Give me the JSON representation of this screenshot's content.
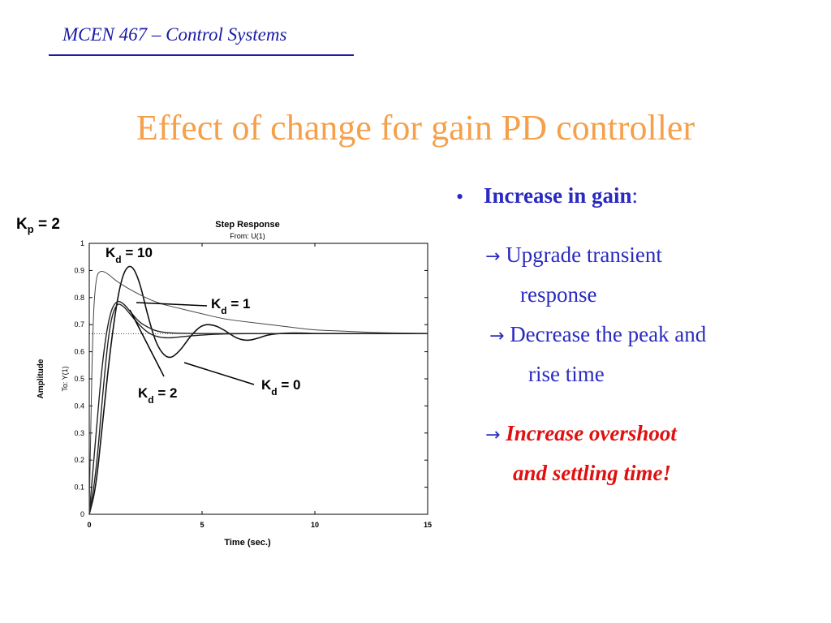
{
  "header": {
    "course": "MCEN 467 – Control Systems"
  },
  "slide": {
    "title": "Effect of change for gain PD controller"
  },
  "figure": {
    "kp_label": "K",
    "kp_sub": "p",
    "kp_value": " = 2"
  },
  "chart_data": {
    "type": "line",
    "title": "Step Response",
    "subtitle": "From: U(1)",
    "xlabel": "Time (sec.)",
    "ylabel": "Amplitude",
    "ylabel2": "To: Y(1)",
    "xlim": [
      0,
      15
    ],
    "ylim": [
      0,
      1
    ],
    "xticks": [
      0,
      5,
      10,
      15
    ],
    "yticks": [
      0,
      0.1,
      0.2,
      0.3,
      0.4,
      0.5,
      0.6,
      0.7,
      0.8,
      0.9,
      1
    ],
    "final_value": 0.667,
    "series": [
      {
        "name": "Kd = 0",
        "x": [
          0,
          0.3,
          0.6,
          1,
          1.4,
          1.8,
          2.2,
          2.6,
          3,
          3.5,
          4,
          4.5,
          5,
          5.5,
          6,
          6.5,
          7,
          7.5,
          8,
          9,
          10,
          12,
          15
        ],
        "y": [
          0,
          0.1,
          0.35,
          0.66,
          0.87,
          0.93,
          0.87,
          0.73,
          0.62,
          0.57,
          0.6,
          0.66,
          0.7,
          0.7,
          0.68,
          0.65,
          0.64,
          0.65,
          0.665,
          0.67,
          0.667,
          0.667,
          0.667
        ]
      },
      {
        "name": "Kd = 1",
        "x": [
          0,
          0.3,
          0.6,
          0.9,
          1.2,
          1.5,
          1.8,
          2.2,
          2.6,
          3,
          3.5,
          4,
          5,
          6,
          7,
          8,
          10,
          12,
          15
        ],
        "y": [
          0,
          0.15,
          0.45,
          0.7,
          0.78,
          0.77,
          0.74,
          0.7,
          0.67,
          0.655,
          0.65,
          0.655,
          0.662,
          0.666,
          0.667,
          0.667,
          0.667,
          0.667,
          0.667
        ]
      },
      {
        "name": "Kd = 2",
        "x": [
          0,
          0.3,
          0.6,
          0.9,
          1.2,
          1.5,
          1.8,
          2.2,
          2.6,
          3,
          3.5,
          4,
          5,
          6,
          8,
          10,
          15
        ],
        "y": [
          0,
          0.3,
          0.58,
          0.74,
          0.79,
          0.78,
          0.75,
          0.71,
          0.69,
          0.675,
          0.67,
          0.668,
          0.667,
          0.667,
          0.667,
          0.667,
          0.667
        ]
      },
      {
        "name": "Kd = 10",
        "x": [
          0,
          0.15,
          0.3,
          0.5,
          0.8,
          1.2,
          2,
          3,
          4,
          5,
          6,
          7,
          8,
          9,
          10,
          11,
          12,
          13,
          14,
          15
        ],
        "y": [
          0,
          0.7,
          0.88,
          0.9,
          0.89,
          0.86,
          0.82,
          0.78,
          0.76,
          0.74,
          0.72,
          0.71,
          0.7,
          0.69,
          0.68,
          0.677,
          0.673,
          0.67,
          0.669,
          0.668
        ]
      }
    ],
    "annotations": [
      {
        "label": "Kd = 10",
        "base": "K",
        "sub": "d",
        "rest": " = 10"
      },
      {
        "label": "Kd = 1",
        "base": "K",
        "sub": "d",
        "rest": " = 1"
      },
      {
        "label": "Kd = 2",
        "base": "K",
        "sub": "d",
        "rest": " = 2"
      },
      {
        "label": "Kd = 0",
        "base": "K",
        "sub": "d",
        "rest": " = 0"
      }
    ]
  },
  "bullets": {
    "heading": "Increase in gain",
    "heading_colon": ":",
    "arrow": "→",
    "line1": "Upgrade transient",
    "line1b": "response",
    "line2": "Decrease the peak and",
    "line2b": "rise time",
    "line3": "Increase overshoot",
    "line3b": "and settling time!"
  }
}
